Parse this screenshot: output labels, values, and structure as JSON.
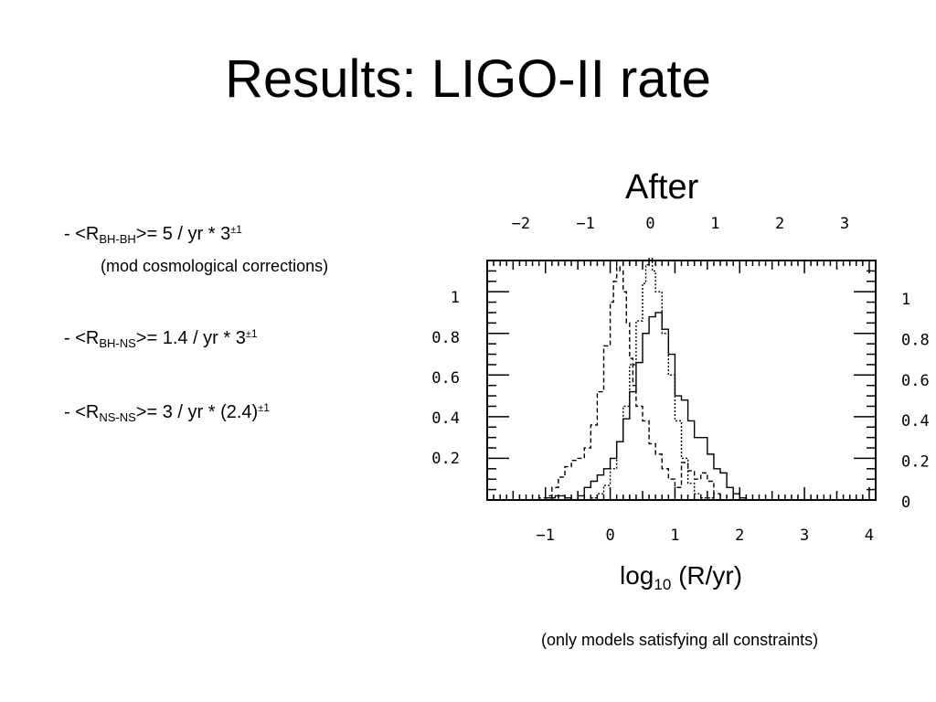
{
  "slide": {
    "title": "Results: LIGO-II rate",
    "bullets": [
      {
        "prefix": "- <R",
        "sub": "BH-BH",
        "middle": ">= 5 / yr  * 3",
        "pm": "±",
        "exp": "1"
      },
      {
        "prefix": "- <R",
        "sub": "BH-NS",
        "middle": ">= 1.4 / yr * 3",
        "pm": "±",
        "exp": "1"
      },
      {
        "prefix": "- <R",
        "sub": "NS-NS",
        "middle": ">= 3 / yr * (2.4)",
        "pm": "±",
        "exp": "1"
      }
    ],
    "bullet_note": "(mod cosmological corrections)",
    "footnote": "(only models satisfying all constraints)"
  },
  "chart_data": {
    "type": "line",
    "title": "After",
    "xlabel": {
      "main": "log",
      "sub": "10",
      "rest": " (R/yr)"
    },
    "xlim": [
      -1.9,
      4.1
    ],
    "ylim": [
      0,
      1.15
    ],
    "x_ticks_bottom": [
      -1,
      0,
      1,
      2,
      3,
      4
    ],
    "x_tick_labels_bottom": [
      "−1",
      "0",
      "1",
      "2",
      "3",
      "4"
    ],
    "x_ticks_top": [
      -2,
      -1,
      0,
      1,
      2,
      3
    ],
    "x_tick_labels_top": [
      "−2",
      "−1",
      "0",
      "1",
      "2",
      "3"
    ],
    "y_ticks": [
      0.2,
      0.4,
      0.6,
      0.8,
      1
    ],
    "y_tick_labels_left": [
      "0.2",
      "0.4",
      "0.6",
      "0.8",
      "1"
    ],
    "y_ticks_right": [
      0,
      0.2,
      0.4,
      0.6,
      0.8,
      1
    ],
    "y_tick_labels_right": [
      "0",
      "0.2",
      "0.4",
      "0.6",
      "0.8",
      "1"
    ],
    "series": [
      {
        "style": "solid",
        "x": [
          -1.9,
          -1.2,
          -1.0,
          -0.85,
          -0.7,
          -0.6,
          -0.5,
          -0.4,
          -0.3,
          -0.2,
          -0.1,
          0.0,
          0.1,
          0.2,
          0.3,
          0.4,
          0.5,
          0.6,
          0.7,
          0.8,
          0.9,
          1.0,
          1.1,
          1.2,
          1.3,
          1.4,
          1.5,
          1.6,
          1.7,
          1.8,
          1.9,
          2.0,
          2.1,
          2.3
        ],
        "y": [
          0,
          0,
          0.01,
          0.02,
          0.01,
          0.0,
          0.02,
          0.06,
          0.09,
          0.12,
          0.15,
          0.2,
          0.28,
          0.39,
          0.52,
          0.66,
          0.8,
          0.88,
          0.9,
          0.82,
          0.7,
          0.5,
          0.48,
          0.38,
          0.3,
          0.3,
          0.22,
          0.15,
          0.13,
          0.06,
          0.03,
          0.01,
          0.0,
          0
        ]
      },
      {
        "style": "dashed",
        "x": [
          -1.9,
          -1.3,
          -1.1,
          -1.0,
          -0.9,
          -0.8,
          -0.7,
          -0.6,
          -0.5,
          -0.4,
          -0.3,
          -0.2,
          -0.1,
          0.0,
          0.05,
          0.1,
          0.15,
          0.2,
          0.25,
          0.3,
          0.35,
          0.4,
          0.5,
          0.6,
          0.7,
          0.8,
          0.9,
          1.0,
          1.1,
          1.2,
          1.3,
          1.4,
          1.5,
          1.6,
          1.7,
          2.0
        ],
        "y": [
          0,
          0,
          0.01,
          0.02,
          0.06,
          0.11,
          0.16,
          0.19,
          0.2,
          0.25,
          0.36,
          0.52,
          0.74,
          0.95,
          1.05,
          1.12,
          1.1,
          1.0,
          0.85,
          0.68,
          0.55,
          0.45,
          0.38,
          0.27,
          0.22,
          0.15,
          0.1,
          0.06,
          0.18,
          0.14,
          0.1,
          0.13,
          0.09,
          0.03,
          0.0,
          0
        ]
      },
      {
        "style": "dotted",
        "x": [
          -1.9,
          -0.5,
          -0.3,
          -0.2,
          -0.1,
          0.0,
          0.1,
          0.2,
          0.3,
          0.4,
          0.5,
          0.55,
          0.6,
          0.65,
          0.7,
          0.8,
          0.9,
          1.0,
          1.1,
          1.2,
          1.3,
          1.4,
          1.6,
          2.0
        ],
        "y": [
          0,
          0.0,
          0.01,
          0.03,
          0.07,
          0.15,
          0.28,
          0.45,
          0.65,
          0.86,
          1.04,
          1.13,
          1.16,
          1.1,
          1.0,
          0.8,
          0.6,
          0.38,
          0.2,
          0.08,
          0.03,
          0.01,
          0.0,
          0
        ]
      }
    ]
  }
}
